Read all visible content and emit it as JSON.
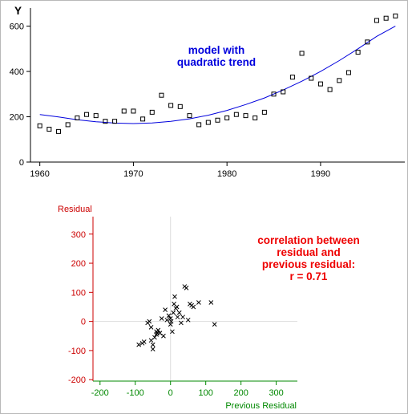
{
  "chart_data": [
    {
      "type": "scatter",
      "ylabel": "Y",
      "xlim": [
        1959,
        1999
      ],
      "ylim": [
        0,
        680
      ],
      "x_ticks": [
        1960,
        1970,
        1980,
        1990
      ],
      "y_ticks": [
        0,
        200,
        400,
        600
      ],
      "annotation": [
        "model with",
        "quadratic trend"
      ],
      "colors": {
        "axis": "#000000",
        "trend": "#0000dd",
        "annotation": "#0000dd",
        "points": "#000000"
      },
      "series": [
        {
          "kind": "points",
          "x": [
            1960,
            1961,
            1962,
            1963,
            1964,
            1965,
            1966,
            1967,
            1968,
            1969,
            1970,
            1971,
            1972,
            1973,
            1974,
            1975,
            1976,
            1977,
            1978,
            1979,
            1980,
            1981,
            1982,
            1983,
            1984,
            1985,
            1986,
            1987,
            1988,
            1989,
            1990,
            1991,
            1992,
            1993,
            1994,
            1995,
            1996,
            1997,
            1998
          ],
          "y": [
            160,
            145,
            135,
            165,
            195,
            210,
            205,
            180,
            180,
            225,
            225,
            190,
            220,
            295,
            250,
            245,
            205,
            165,
            175,
            185,
            195,
            210,
            205,
            195,
            220,
            300,
            310,
            375,
            480,
            370,
            345,
            320,
            360,
            395,
            485,
            530,
            625,
            635,
            645
          ]
        },
        {
          "kind": "trend",
          "x": [
            1960,
            1962,
            1964,
            1966,
            1968,
            1970,
            1972,
            1974,
            1976,
            1978,
            1980,
            1982,
            1984,
            1986,
            1988,
            1990,
            1992,
            1994,
            1996,
            1998
          ],
          "y": [
            210,
            199,
            187,
            178,
            172,
            170,
            173,
            180,
            191,
            207,
            228,
            254,
            283,
            318,
            357,
            400,
            448,
            500,
            555,
            600
          ]
        }
      ]
    },
    {
      "type": "scatter",
      "ylabel": "Residual",
      "xlabel": "Previous Residual",
      "xlim": [
        -220,
        360
      ],
      "ylim": [
        -205,
        360
      ],
      "x_ticks": [
        -200,
        -100,
        0,
        100,
        200,
        300
      ],
      "y_ticks": [
        -200,
        -100,
        0,
        100,
        200,
        300
      ],
      "annotation": [
        "correlation between",
        "residual and",
        "previous residual:",
        "r = 0.71"
      ],
      "colors": {
        "y_axis": "#cc0000",
        "x_axis": "#008800",
        "annotation": "#ee0000",
        "points": "#000000",
        "zero_lines": "#dddddd"
      },
      "points": {
        "x": [
          -90,
          -80,
          -75,
          -65,
          -60,
          -55,
          -50,
          -45,
          -40,
          -38,
          -35,
          -30,
          -25,
          -20,
          -15,
          -10,
          -5,
          0,
          0,
          2,
          5,
          8,
          10,
          12,
          15,
          18,
          20,
          25,
          30,
          35,
          40,
          45,
          50,
          55,
          60,
          65,
          80,
          115,
          125,
          -50,
          -55,
          -40
        ],
        "y": [
          -80,
          -75,
          -70,
          -5,
          0,
          -65,
          -95,
          -55,
          -35,
          -40,
          -30,
          -40,
          10,
          -50,
          40,
          5,
          20,
          -10,
          10,
          0,
          -35,
          30,
          60,
          85,
          45,
          50,
          15,
          30,
          -5,
          15,
          120,
          115,
          5,
          60,
          55,
          50,
          65,
          65,
          -10,
          -80,
          -20,
          -45
        ]
      }
    }
  ]
}
